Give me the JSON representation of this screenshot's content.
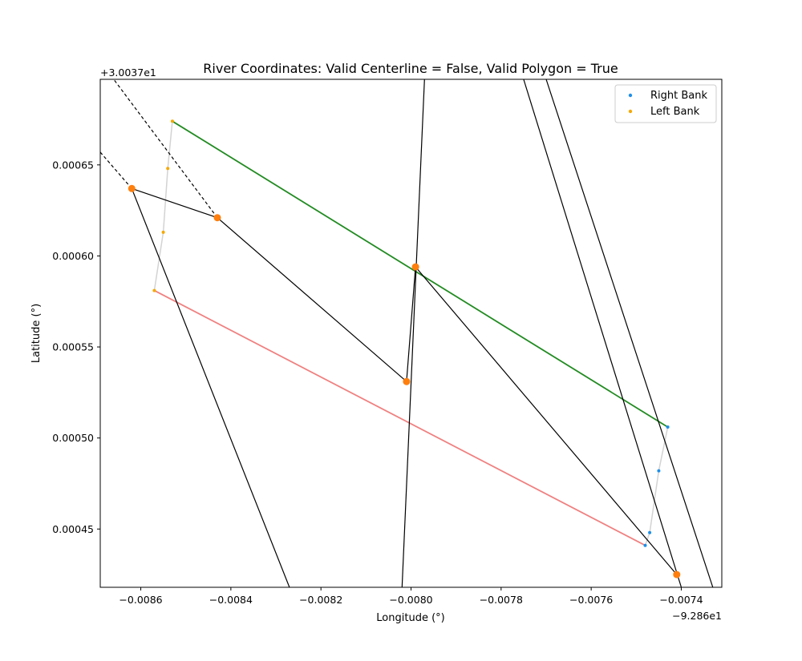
{
  "chart_data": {
    "type": "scatter",
    "title": "River Coordinates: Valid Centerline = False, Valid Polygon = True",
    "xlabel": "Longitude (°)",
    "ylabel": "Latitude (°)",
    "x_offset_label": "−9.286e1",
    "y_offset_label": "+3.0037e1",
    "xlim": [
      -0.00869,
      -0.00731
    ],
    "ylim": [
      0.000418,
      0.000697
    ],
    "x_ticks": [
      {
        "value": -0.0086,
        "label": "−0.0086"
      },
      {
        "value": -0.0084,
        "label": "−0.0084"
      },
      {
        "value": -0.0082,
        "label": "−0.0082"
      },
      {
        "value": -0.008,
        "label": "−0.0080"
      },
      {
        "value": -0.0078,
        "label": "−0.0078"
      },
      {
        "value": -0.0076,
        "label": "−0.0076"
      },
      {
        "value": -0.0074,
        "label": "−0.0074"
      }
    ],
    "y_ticks": [
      {
        "value": 0.00045,
        "label": "0.00045"
      },
      {
        "value": 0.0005,
        "label": "0.00050"
      },
      {
        "value": 0.00055,
        "label": "0.00055"
      },
      {
        "value": 0.0006,
        "label": "0.00060"
      },
      {
        "value": 0.00065,
        "label": "0.00065"
      }
    ],
    "legend": {
      "position": "top-right",
      "entries": [
        {
          "label": "Right Bank",
          "color": "#1f8fe8"
        },
        {
          "label": "Left Bank",
          "color": "#f5a800"
        }
      ]
    },
    "series": [
      {
        "name": "Right Bank",
        "color": "#1f8fe8",
        "x": [
          -0.00743,
          -0.00745,
          -0.00747,
          -0.00748
        ],
        "y": [
          0.000506,
          0.000482,
          0.000448,
          0.000441
        ]
      },
      {
        "name": "Left Bank",
        "color": "#f5a800",
        "x": [
          -0.00853,
          -0.00854,
          -0.00855,
          -0.00857
        ],
        "y": [
          0.000674,
          0.000648,
          0.000613,
          0.000581
        ]
      }
    ],
    "orange_nodes": {
      "color": "#ff7f0e",
      "x": [
        -0.00862,
        -0.00843,
        -0.00799,
        -0.00801,
        -0.00741
      ],
      "y": [
        0.000637,
        0.000621,
        0.000594,
        0.000531,
        0.000425
      ]
    },
    "lines": [
      {
        "kind": "bank-edge-left",
        "color": "#d3d3d3",
        "width": 1.5,
        "dash": "",
        "x": [
          -0.00853,
          -0.00854,
          -0.00855,
          -0.00857
        ],
        "y": [
          0.000674,
          0.000648,
          0.000613,
          0.000581
        ]
      },
      {
        "kind": "bank-edge-right",
        "color": "#d3d3d3",
        "width": 1.5,
        "dash": "",
        "x": [
          -0.00743,
          -0.00745,
          -0.00747,
          -0.00748
        ],
        "y": [
          0.000506,
          0.000482,
          0.000448,
          0.000441
        ]
      },
      {
        "kind": "top-connector",
        "color": "#228b22",
        "width": 1.8,
        "dash": "",
        "x": [
          -0.00853,
          -0.00743
        ],
        "y": [
          0.000674,
          0.000506
        ]
      },
      {
        "kind": "bottom-connector",
        "color": "#f08080",
        "width": 1.8,
        "dash": "",
        "x": [
          -0.00857,
          -0.00748
        ],
        "y": [
          0.000581,
          0.000441
        ]
      },
      {
        "kind": "centerline",
        "color": "#000000",
        "width": 1.2,
        "dash": "",
        "x": [
          -0.00862,
          -0.00843,
          -0.00801,
          -0.00799,
          -0.00741
        ],
        "y": [
          0.000637,
          0.000621,
          0.000531,
          0.000594,
          0.000425
        ]
      },
      {
        "kind": "dashed-extension-a",
        "color": "#000000",
        "width": 1.2,
        "dash": "4,3",
        "x": [
          -0.00843,
          -0.00866
        ],
        "y": [
          0.000621,
          0.000697
        ]
      },
      {
        "kind": "dashed-extension-b",
        "color": "#000000",
        "width": 1.2,
        "dash": "4,3",
        "x": [
          -0.00862,
          -0.00869
        ],
        "y": [
          0.000637,
          0.000657
        ]
      },
      {
        "kind": "perpendicular-1",
        "color": "#000000",
        "width": 1.2,
        "dash": "",
        "x": [
          -0.00862,
          -0.00827
        ],
        "y": [
          0.000637,
          0.000418
        ]
      },
      {
        "kind": "perpendicular-2",
        "color": "#000000",
        "width": 1.2,
        "dash": "",
        "x": [
          -0.00797,
          -0.00802
        ],
        "y": [
          0.000697,
          0.000418
        ]
      },
      {
        "kind": "perpendicular-3",
        "color": "#000000",
        "width": 1.2,
        "dash": "",
        "x": [
          -0.00775,
          -0.0074
        ],
        "y": [
          0.000697,
          0.000418
        ]
      },
      {
        "kind": "perpendicular-4",
        "color": "#000000",
        "width": 1.2,
        "dash": "",
        "x": [
          -0.0077,
          -0.00733
        ],
        "y": [
          0.000697,
          0.000418
        ]
      }
    ]
  }
}
